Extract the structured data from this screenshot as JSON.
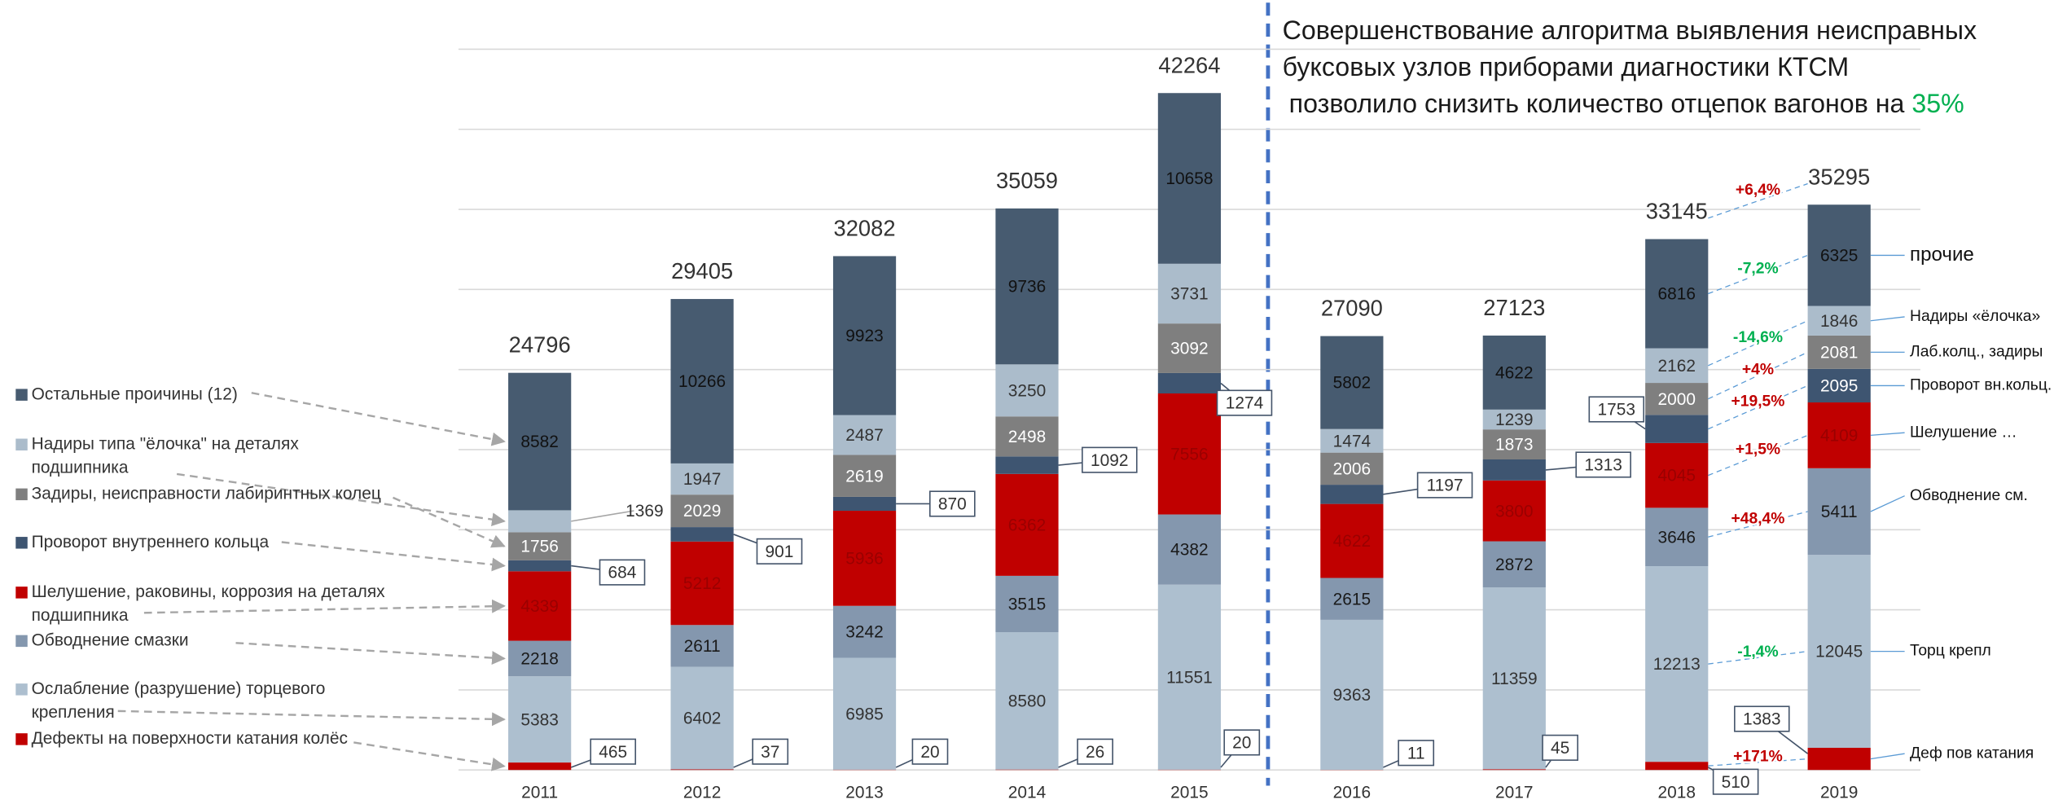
{
  "chart_data": {
    "type": "stacked_bar",
    "title_lines": [
      "Совершенствование алгоритма выявления неисправных",
      "буксовых узлов приборами диагностики КТСМ",
      "позволило снизить количество отцепок вагонов на"
    ],
    "title_highlight": "35%",
    "categories": [
      "2011",
      "2012",
      "2013",
      "2014",
      "2015",
      "2016",
      "2017",
      "2018",
      "2019"
    ],
    "totals": [
      24796,
      29405,
      32082,
      35059,
      42264,
      27090,
      27123,
      33145,
      35295
    ],
    "total_change_label": "+6,4%",
    "total_change_color": "#c00000",
    "series": [
      {
        "name": "Дефекты на поверхности катания колёс",
        "short_name": "Деф пов катания",
        "color": "#c00000",
        "values": [
          465,
          37,
          20,
          26,
          20,
          11,
          45,
          510,
          1383
        ],
        "change_label": "+171%",
        "change_color": "#c00000"
      },
      {
        "name": "Ослабление (разрушение) торцевого крепления",
        "short_name": "Торц крепл",
        "color": "#adbfcf",
        "values": [
          5383,
          6402,
          6985,
          8580,
          11551,
          9363,
          11359,
          12213,
          12045
        ],
        "change_label": "-1,4%",
        "change_color": "#00b050"
      },
      {
        "name": "Обводнение смазки",
        "short_name": "Обводнение см.",
        "color": "#8497ae",
        "values": [
          2218,
          2611,
          3242,
          3515,
          4382,
          2615,
          2872,
          3646,
          5411
        ],
        "change_label": "+48,4%",
        "change_color": "#c00000"
      },
      {
        "name": "Шелушение, раковины, коррозия на  деталях подшипника",
        "short_name": "Шелушение …",
        "color": "#c00000",
        "values": [
          4339,
          5212,
          5936,
          6362,
          7556,
          4622,
          3800,
          4045,
          4109
        ],
        "change_label": "+1,5%",
        "change_color": "#c00000"
      },
      {
        "name": "Проворот внутреннего кольца",
        "short_name": "Проворот вн.кольц.",
        "color": "#3e5571",
        "values": [
          684,
          901,
          870,
          1092,
          1274,
          1197,
          1313,
          1753,
          2095
        ],
        "change_label": "+19,5%",
        "change_color": "#c00000"
      },
      {
        "name": "Задиры, неисправности лабиринтных колец",
        "short_name": "Лаб.колц., задиры",
        "color": "#7f7f7f",
        "values": [
          1756,
          2029,
          2619,
          2498,
          3092,
          2006,
          1873,
          2000,
          2081
        ],
        "change_label": "+4%",
        "change_color": "#c00000"
      },
      {
        "name": "Надиры типа \"ёлочка\" на деталях подшипника",
        "short_name": "Надиры «ёлочка»",
        "color": "#abbccb",
        "values": [
          1369,
          1947,
          2487,
          3250,
          3731,
          1474,
          1239,
          2162,
          1846
        ],
        "change_label": "-14,6%",
        "change_color": "#00b050"
      },
      {
        "name": "Остальные проичины (12)",
        "short_name": "прочие",
        "color": "#475b70",
        "values": [
          8582,
          10266,
          9923,
          9736,
          10658,
          5802,
          4622,
          6816,
          6325
        ],
        "change_label": "-7,2%",
        "change_color": "#00b050"
      }
    ],
    "ylim": [
      0,
      45000
    ],
    "yticks": [
      0,
      5000,
      10000,
      15000,
      20000,
      25000,
      30000,
      35000,
      40000,
      45000
    ],
    "grid": true
  }
}
